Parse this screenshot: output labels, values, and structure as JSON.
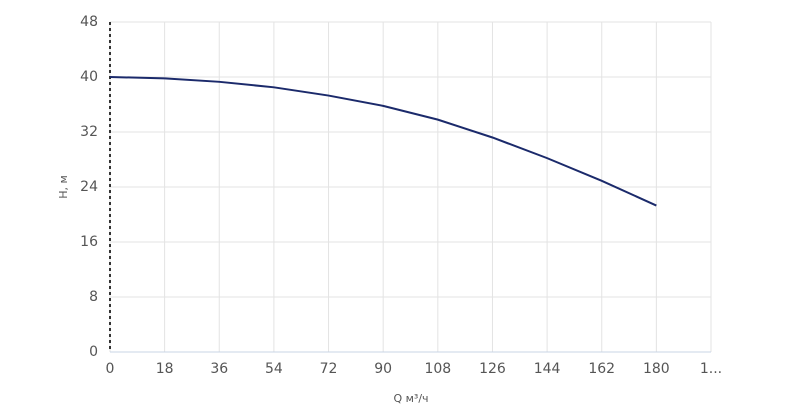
{
  "chart_data": {
    "type": "line",
    "x_label": "Q м³/ч",
    "y_label": "H, м",
    "x": [
      0,
      18,
      36,
      54,
      72,
      90,
      108,
      126,
      144,
      162,
      180
    ],
    "series": [
      {
        "name": "H",
        "color": "#1b2a6b",
        "values": [
          40,
          39.8,
          39.3,
          38.5,
          37.3,
          35.8,
          33.8,
          31.2,
          28.2,
          24.9,
          21.3
        ]
      }
    ],
    "xlim": [
      0,
      198
    ],
    "xticks": [
      0,
      18,
      36,
      54,
      72,
      90,
      108,
      126,
      144,
      162,
      180,
      {
        "value": 198,
        "label": "1..."
      }
    ],
    "ylim": [
      0,
      48
    ],
    "yticks": [
      0,
      8,
      16,
      24,
      32,
      40,
      48
    ],
    "grid": true
  }
}
